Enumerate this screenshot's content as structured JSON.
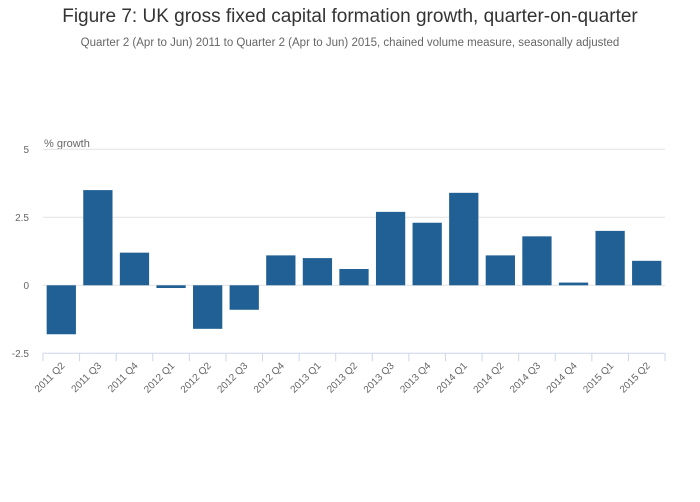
{
  "chart_data": {
    "type": "bar",
    "title": "Figure 7: UK gross fixed capital formation growth, quarter-on-quarter",
    "subtitle": "Quarter 2 (Apr to Jun) 2011 to Quarter 2 (Apr to Jun) 2015, chained volume measure, seasonally adjusted",
    "xlabel": "",
    "ylabel": "% growth",
    "ylim": [
      -2.5,
      5
    ],
    "yticks": [
      5,
      2.5,
      0,
      -2.5
    ],
    "ytick_labels": [
      "5",
      "2.5",
      "0",
      "-2.5"
    ],
    "grid": true,
    "color": "#206095",
    "categories": [
      "2011 Q2",
      "2011 Q3",
      "2011 Q4",
      "2012 Q1",
      "2012 Q2",
      "2012 Q3",
      "2012 Q4",
      "2013 Q1",
      "2013 Q2",
      "2013 Q3",
      "2013 Q4",
      "2014 Q1",
      "2014 Q2",
      "2014 Q3",
      "2014 Q4",
      "2015 Q1",
      "2015 Q2"
    ],
    "values": [
      -1.8,
      3.5,
      1.2,
      -0.1,
      -1.6,
      -0.9,
      1.1,
      1.0,
      0.6,
      2.7,
      2.3,
      3.4,
      1.1,
      1.8,
      0.1,
      2.0,
      0.9
    ]
  }
}
